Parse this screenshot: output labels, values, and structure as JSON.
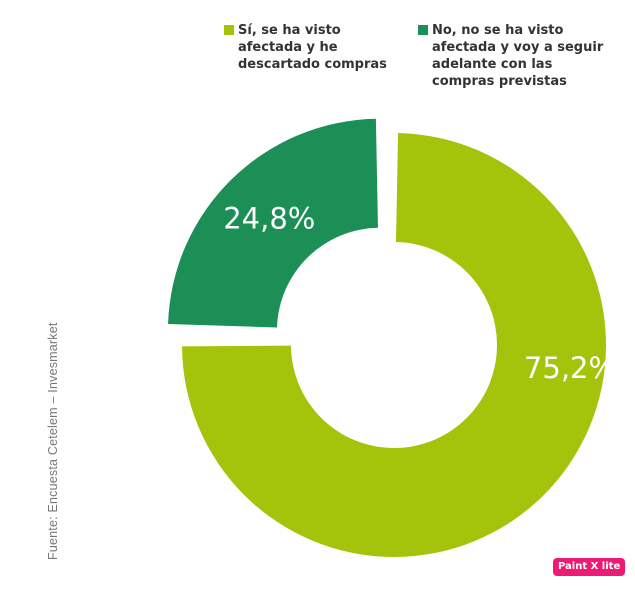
{
  "chart_data": {
    "type": "pie",
    "variant": "donut",
    "labels": [
      "Sí, se ha visto afectada y he descartado compras",
      "No, no se ha visto afectada y voy a seguir adelante con las compras previstas"
    ],
    "values": [
      75.2,
      24.8
    ],
    "data_labels": [
      "75,2%",
      "24,8%"
    ],
    "colors": [
      "#a3c40b",
      "#1b8f55"
    ],
    "exploded": [
      false,
      true
    ],
    "legend_position": "top",
    "grid": false
  },
  "legend": {
    "item1": "Sí, se ha visto afectada y he descartado compras",
    "item2": "No, no se ha visto afectada y voy a seguir adelante con las compras previstas"
  },
  "source": "Fuente: Encuesta Cetelem – Invesmarket",
  "badge": "Paint X lite"
}
